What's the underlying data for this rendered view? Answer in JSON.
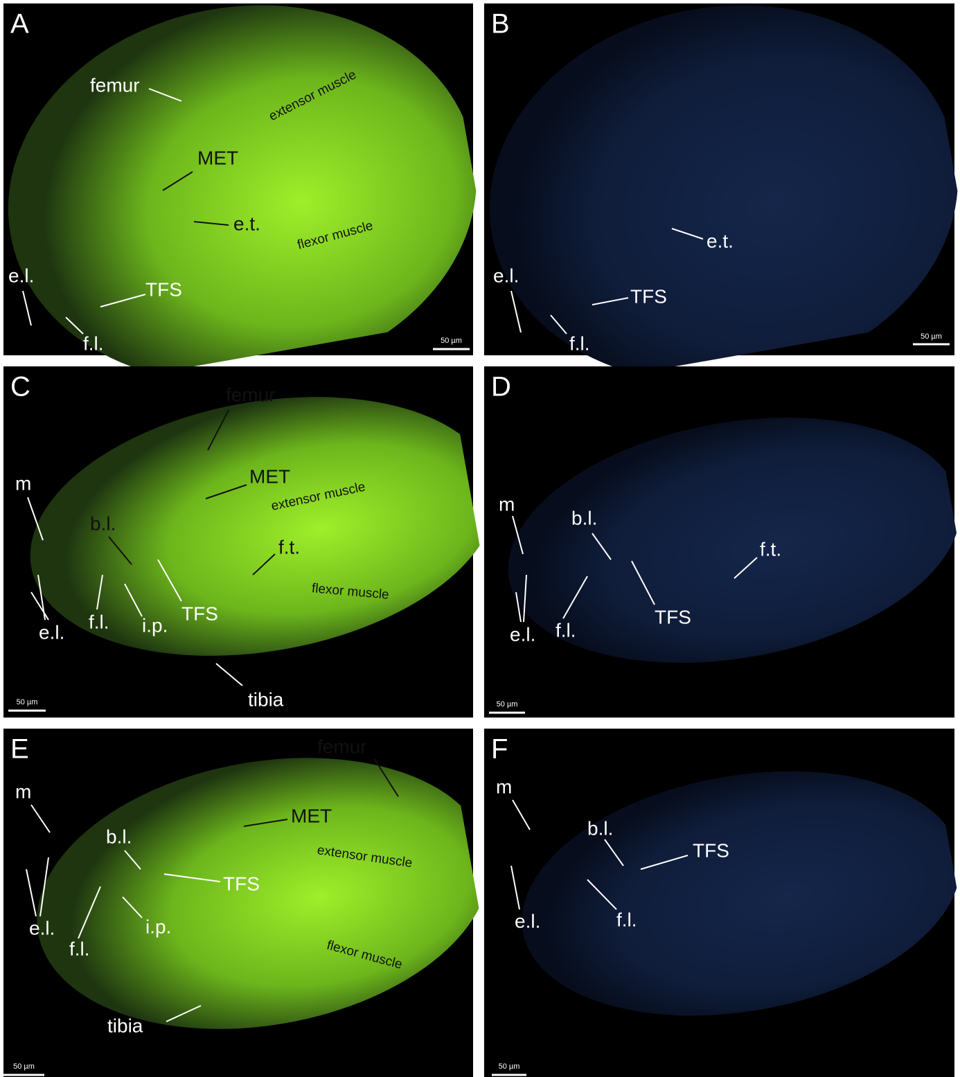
{
  "panels": [
    {
      "letter": "A",
      "labels": [
        "femur",
        "MET",
        "extensor muscle",
        "e.t.",
        "flexor muscle",
        "e.l.",
        "TFS",
        "f.l."
      ],
      "scale_bar": "50 µm"
    },
    {
      "letter": "B",
      "labels": [
        "e.t.",
        "e.l.",
        "TFS",
        "f.l."
      ],
      "scale_bar": "50 µm"
    },
    {
      "letter": "C",
      "labels": [
        "femur",
        "MET",
        "extensor muscle",
        "m",
        "b.l.",
        "f.t.",
        "flexor muscle",
        "e.l.",
        "f.l.",
        "i.p.",
        "TFS",
        "tibia"
      ],
      "scale_bar": "50 µm"
    },
    {
      "letter": "D",
      "labels": [
        "m",
        "b.l.",
        "f.t.",
        "e.l.",
        "f.l.",
        "TFS"
      ],
      "scale_bar": "50 µm"
    },
    {
      "letter": "E",
      "labels": [
        "femur",
        "MET",
        "extensor muscle",
        "flexor muscle",
        "m",
        "b.l.",
        "TFS",
        "e.l.",
        "f.l.",
        "i.p.",
        "tibia"
      ],
      "scale_bar": "50 µm"
    },
    {
      "letter": "F",
      "labels": [
        "m",
        "b.l.",
        "TFS",
        "e.l.",
        "f.l."
      ],
      "scale_bar": "50 µm"
    }
  ]
}
